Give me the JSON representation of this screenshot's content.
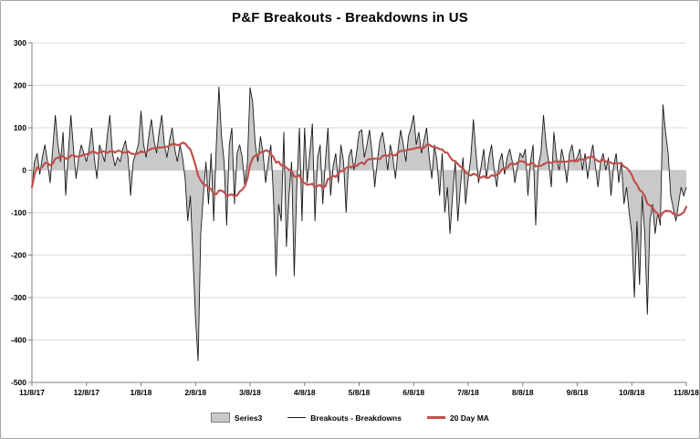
{
  "chart_data": {
    "type": "area",
    "title": "P&F Breakouts - Breakdowns in US",
    "xlabel": "",
    "ylabel": "",
    "ylim": [
      -500,
      300
    ],
    "y_ticks": [
      300,
      200,
      100,
      0,
      -100,
      -200,
      -300,
      -400,
      -500
    ],
    "grid": true,
    "legend_position": "bottom",
    "x_labels": [
      "11/8/17",
      "12/8/17",
      "1/8/18",
      "2/8/18",
      "3/8/18",
      "4/8/18",
      "5/8/18",
      "6/8/18",
      "7/8/18",
      "8/8/18",
      "9/8/18",
      "10/8/18",
      "11/8/18"
    ],
    "label_every": 21,
    "values": [
      -40,
      20,
      40,
      -10,
      30,
      60,
      20,
      -30,
      50,
      130,
      60,
      20,
      90,
      -60,
      40,
      130,
      50,
      -20,
      30,
      60,
      40,
      20,
      50,
      100,
      30,
      -20,
      60,
      40,
      20,
      80,
      130,
      40,
      10,
      30,
      20,
      50,
      70,
      30,
      -60,
      20,
      40,
      60,
      140,
      60,
      30,
      80,
      120,
      70,
      40,
      90,
      130,
      60,
      30,
      70,
      100,
      50,
      20,
      60,
      30,
      -20,
      -120,
      -60,
      -200,
      -350,
      -450,
      -150,
      -60,
      20,
      -80,
      40,
      -120,
      60,
      197,
      80,
      20,
      -130,
      60,
      100,
      -80,
      40,
      60,
      30,
      -40,
      20,
      195,
      160,
      60,
      20,
      80,
      40,
      -30,
      20,
      60,
      -60,
      -250,
      -80,
      -120,
      90,
      -180,
      -60,
      20,
      -250,
      -40,
      100,
      -120,
      100,
      -30,
      40,
      110,
      -120,
      30,
      60,
      -80,
      20,
      100,
      -60,
      10,
      40,
      -30,
      60,
      20,
      -100,
      30,
      50,
      0,
      40,
      90,
      95,
      30,
      60,
      95,
      40,
      -40,
      20,
      70,
      90,
      50,
      0,
      60,
      30,
      -20,
      50,
      95,
      60,
      20,
      80,
      100,
      130,
      60,
      90,
      40,
      70,
      100,
      30,
      -20,
      60,
      20,
      -60,
      40,
      -100,
      -40,
      -150,
      -60,
      20,
      -120,
      -40,
      30,
      -80,
      -20,
      30,
      120,
      40,
      -30,
      10,
      50,
      -20,
      30,
      60,
      0,
      -40,
      20,
      40,
      -10,
      30,
      50,
      20,
      -30,
      10,
      40,
      30,
      50,
      -60,
      20,
      60,
      -130,
      10,
      40,
      130,
      60,
      20,
      -40,
      90,
      30,
      0,
      50,
      20,
      -30,
      40,
      60,
      20,
      30,
      50,
      0,
      40,
      -20,
      30,
      60,
      10,
      -40,
      20,
      40,
      0,
      30,
      -60,
      10,
      40,
      -30,
      20,
      -80,
      -40,
      -100,
      -150,
      -300,
      -120,
      -270,
      -60,
      -150,
      -340,
      -120,
      -80,
      -150,
      -100,
      -130,
      155,
      90,
      40,
      -60,
      -90,
      -120,
      -80,
      -40,
      -60,
      -40
    ],
    "series": [
      {
        "name": "Series3",
        "render": "area",
        "color": "#c9c9c9",
        "border": "#7f7f7f"
      },
      {
        "name": "Breakouts - Breakdowns",
        "render": "line",
        "color": "#1a1a1a"
      },
      {
        "name": "20 Day MA",
        "render": "moving_average",
        "window": 20,
        "color": "#c0504d"
      }
    ],
    "axis_color": "#808080",
    "grid_color": "#d9d9d9"
  }
}
